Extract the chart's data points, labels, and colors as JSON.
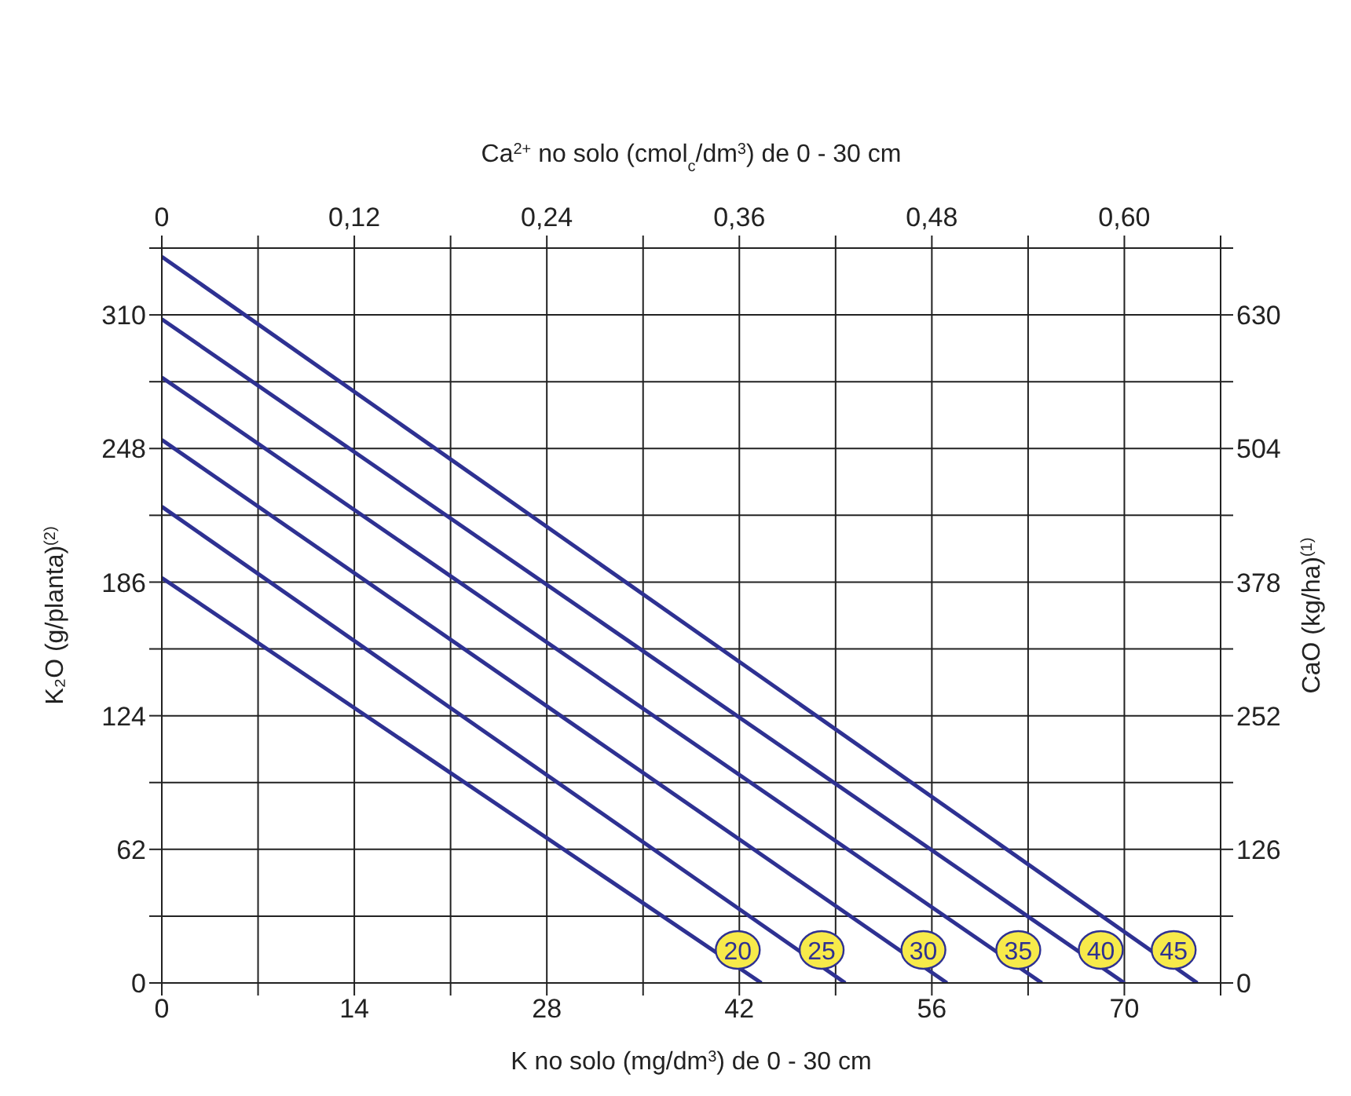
{
  "chart_data": {
    "type": "line",
    "xlabel": "K no solo (mg/dm$^{3}$) de 0 - 30 cm",
    "x2label": "Ca$^{2+}$ no solo (cmol$_{c}$/dm$^{3}$) de 0 - 30 cm",
    "ylabel": "K₂O (g/planta)$^{(2)}$",
    "y2label": "CaO (kg/ha)$^{(1)}$",
    "xlim": [
      0,
      77
    ],
    "xticks": [
      0,
      {
        "value": 7,
        "label": null
      },
      14,
      {
        "value": 21,
        "label": null
      },
      28,
      {
        "value": 35,
        "label": null
      },
      42,
      {
        "value": 49,
        "label": null
      },
      56,
      {
        "value": 63,
        "label": null
      },
      70,
      {
        "value": 77,
        "label": null
      }
    ],
    "x2lim": [
      0,
      0.66
    ],
    "x2ticks": [
      0,
      {
        "value": 0.06,
        "label": null
      },
      {
        "value": 0.12,
        "label": "0,12"
      },
      {
        "value": 0.18,
        "label": null
      },
      {
        "value": 0.24,
        "label": "0,24"
      },
      {
        "value": 0.3,
        "label": null
      },
      {
        "value": 0.36,
        "label": "0,36"
      },
      {
        "value": 0.42,
        "label": null
      },
      {
        "value": 0.48,
        "label": "0,48"
      },
      {
        "value": 0.54,
        "label": null
      },
      {
        "value": 0.6,
        "label": "0,60"
      },
      {
        "value": 0.66,
        "label": null
      }
    ],
    "ylim": [
      0,
      341
    ],
    "yticks": [
      0,
      {
        "value": 31,
        "label": null
      },
      62,
      {
        "value": 93,
        "label": null
      },
      124,
      {
        "value": 155,
        "label": null
      },
      186,
      {
        "value": 217,
        "label": null
      },
      248,
      {
        "value": 279,
        "label": null
      },
      310,
      {
        "value": 341,
        "label": null
      }
    ],
    "y2lim": [
      0,
      693
    ],
    "y2ticks": [
      0,
      {
        "value": 63,
        "label": null
      },
      126,
      {
        "value": 189,
        "label": null
      },
      252,
      {
        "value": 315,
        "label": null
      },
      378,
      {
        "value": 441,
        "label": null
      },
      504,
      {
        "value": 567,
        "label": null
      },
      630,
      {
        "value": 693,
        "label": null
      }
    ],
    "grid": true,
    "legend": "bottom right",
    "marker": "none",
    "line_style": "solid",
    "series": [
      {
        "name": "20",
        "color": "#2e3192",
        "x": [
          0,
          43.6
        ],
        "values": [
          188,
          0
        ]
      },
      {
        "name": "25",
        "color": "#2e3192",
        "x": [
          0,
          49.7
        ],
        "values": [
          221,
          0
        ]
      },
      {
        "name": "30",
        "color": "#2e3192",
        "x": [
          0,
          57.1
        ],
        "values": [
          252,
          0
        ]
      },
      {
        "name": "35",
        "color": "#2e3192",
        "x": [
          0,
          64
        ],
        "values": [
          281,
          0
        ]
      },
      {
        "name": "40",
        "color": "#2e3192",
        "x": [
          0,
          70
        ],
        "values": [
          308,
          0
        ]
      },
      {
        "name": "45",
        "color": "#2e3192",
        "x": [
          0,
          75.3
        ],
        "values": [
          337,
          0
        ]
      }
    ]
  }
}
